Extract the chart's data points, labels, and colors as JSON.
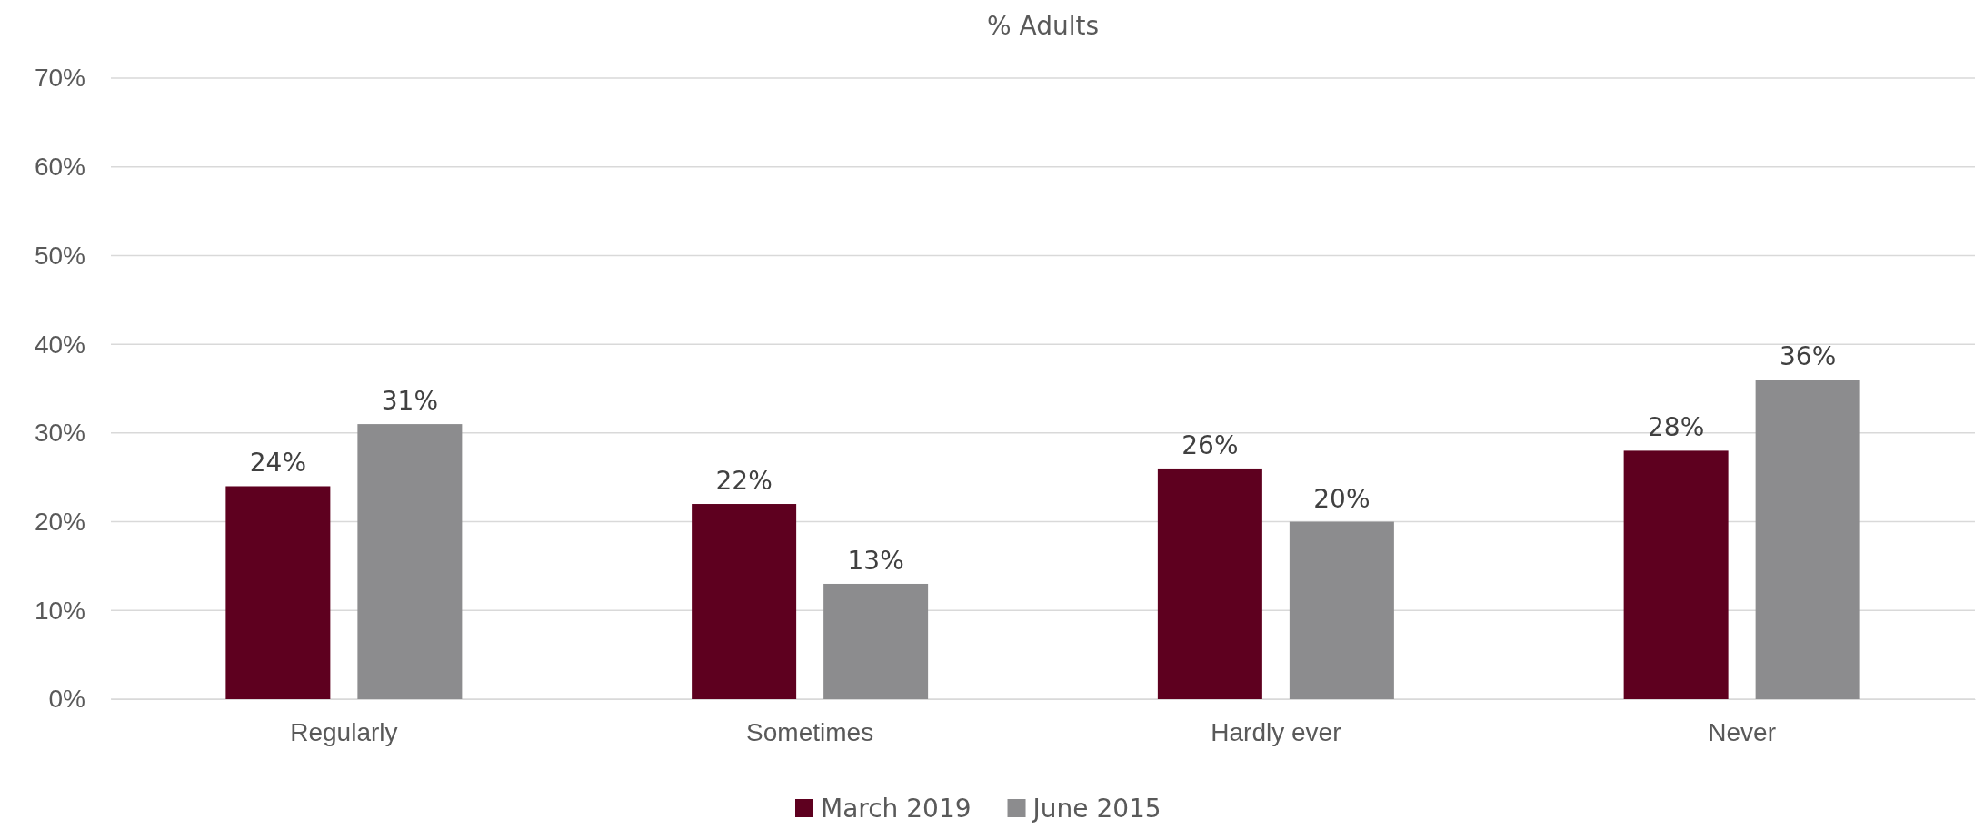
{
  "chart_data": {
    "type": "bar",
    "title": "% Adults",
    "categories": [
      "Regularly",
      "Sometimes",
      "Hardly ever",
      "Never"
    ],
    "series": [
      {
        "name": "March 2019",
        "color": "#5e001f",
        "values": [
          24,
          22,
          26,
          28
        ],
        "value_labels": [
          "24%",
          "22%",
          "26%",
          "28%"
        ]
      },
      {
        "name": "June 2015",
        "color": "#8c8c8e",
        "values": [
          31,
          13,
          20,
          36
        ],
        "value_labels": [
          "31%",
          "13%",
          "20%",
          "36%"
        ]
      }
    ],
    "ylim": [
      0,
      70
    ],
    "yticks": [
      {
        "value": 0,
        "label": "0%"
      },
      {
        "value": 10,
        "label": "10%"
      },
      {
        "value": 20,
        "label": "20%"
      },
      {
        "value": 30,
        "label": "30%"
      },
      {
        "value": 40,
        "label": "40%"
      },
      {
        "value": 50,
        "label": "50%"
      },
      {
        "value": 60,
        "label": "60%"
      },
      {
        "value": 70,
        "label": "70%"
      }
    ],
    "grid": "y",
    "legend": "bottom"
  }
}
